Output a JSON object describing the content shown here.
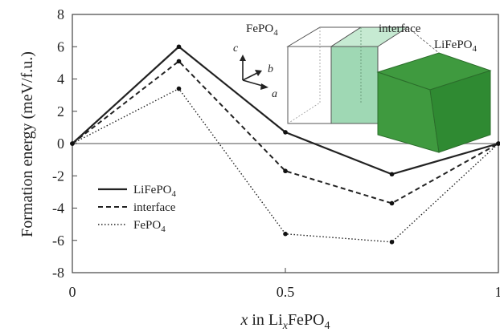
{
  "chart_data": {
    "type": "line",
    "title": "",
    "xlabel": {
      "italic": "x",
      "pre": " in Li",
      "sub_italic": "x",
      "post": "FePO",
      "sub": "4"
    },
    "ylabel": "Formation energy (meV/f.u.)",
    "xlim": [
      0,
      1
    ],
    "ylim": [
      -8,
      8
    ],
    "x_ticks": [
      0,
      0.5,
      1
    ],
    "x_tick_labels": [
      "0",
      "0.5",
      "1"
    ],
    "y_ticks": [
      8,
      6,
      4,
      2,
      0,
      -2,
      -4,
      -6,
      -8
    ],
    "y_tick_labels": [
      "8",
      "6",
      "4",
      "2",
      "0",
      "-2",
      "-4",
      "-6",
      "-8"
    ],
    "zero_line": true,
    "grid": false,
    "legend_position": "lower-left",
    "x": [
      0,
      0.25,
      0.5,
      0.75,
      1
    ],
    "series": [
      {
        "name": "LiFePO",
        "name_sub": "4",
        "style": "solid",
        "values": [
          0,
          6.0,
          0.7,
          -1.9,
          0
        ]
      },
      {
        "name": "interface",
        "name_sub": "",
        "style": "dashed",
        "values": [
          0,
          5.1,
          -1.7,
          -3.7,
          0
        ]
      },
      {
        "name": "FePO",
        "name_sub": "4",
        "style": "dotted",
        "values": [
          0,
          3.4,
          -5.6,
          -6.1,
          0
        ]
      }
    ],
    "inset": {
      "label_fepo4": "FePO",
      "label_fepo4_sub": "4",
      "label_interface": "interface",
      "label_lifepo4": "LiFePO",
      "label_lifepo4_sub": "4",
      "axis_c": "c",
      "axis_b": "b",
      "axis_a": "a",
      "colors": {
        "light_green": "#9fd8b4",
        "dark_green": "#3f9a3f",
        "dark_green_side": "#2f8a32"
      }
    }
  }
}
